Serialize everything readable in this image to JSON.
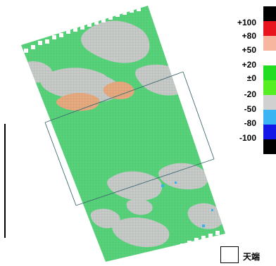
{
  "legend": {
    "labels": [
      "+100",
      "+80",
      "+50",
      "+20",
      "±0",
      "-20",
      "-50",
      "-80",
      "-100"
    ],
    "colors": [
      "#000000",
      "#e8141e",
      "#f7b6a0",
      "#ffffff",
      "#22dd22",
      "#55ee22",
      "#d0d0d0",
      "#3ab4f2",
      "#1418e6",
      "#000000"
    ]
  },
  "map": {
    "dominant_color": "#58d27a",
    "grey_patch_color": "#c9c9c9",
    "orange_patch_color": "#e9a87e"
  },
  "note": {
    "label": "天端"
  }
}
